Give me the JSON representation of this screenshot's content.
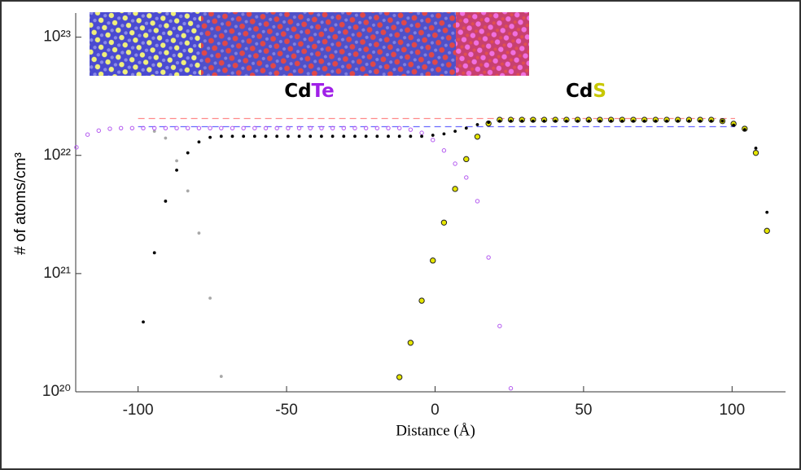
{
  "chart_data": {
    "type": "scatter",
    "xlabel": "Distance (Å)",
    "ylabel": "# of atoms/cm³",
    "xlim": [
      -121,
      118
    ],
    "ylim": [
      1e+20,
      1.6e+23
    ],
    "yscale": "log",
    "xticks": [
      -100,
      -50,
      0,
      50,
      100
    ],
    "yticks": [
      {
        "value": 1e+20,
        "label": "10²⁰"
      },
      {
        "value": 1e+21,
        "label": "10²¹"
      },
      {
        "value": 1e+22,
        "label": "10²²"
      },
      {
        "value": 1e+23,
        "label": "10²³"
      }
    ],
    "annotations": [
      {
        "parts": [
          {
            "text": "Cd",
            "color": "#000000"
          },
          {
            "text": "Te",
            "color": "#a020e8"
          }
        ]
      },
      {
        "parts": [
          {
            "text": "Cd",
            "color": "#000000"
          },
          {
            "text": "S",
            "color": "#c8c800"
          }
        ]
      }
    ],
    "reference_lines": [
      {
        "value": 2.05e+22,
        "xrange": [
          -100,
          101
        ],
        "color": "#ff8a8a"
      },
      {
        "value": 1.75e+22,
        "xrange": [
          -100,
          101
        ],
        "color": "#6a6aff"
      }
    ],
    "series": [
      {
        "color": "#a8a8a8",
        "marker": "dot",
        "x": [
          -94.5,
          -90.75,
          -87,
          -83.25,
          -79.5,
          -75.75,
          -72
        ],
        "values": [
          1.6e+22,
          1.4e+22,
          9e+21,
          5e+21,
          2.2e+21,
          6.2e+20,
          1.35e+20
        ]
      },
      {
        "color": "#b45af0",
        "marker": "open",
        "x": [
          -120.75,
          -117,
          -113.25,
          -109.5,
          -105.75,
          -102,
          -98.25,
          -94.5,
          -90.75,
          -87,
          -83.25,
          -79.5,
          -75.75,
          -72,
          -68.25,
          -64.5,
          -60.75,
          -57,
          -53.25,
          -49.5,
          -45.75,
          -42,
          -38.25,
          -34.5,
          -30.75,
          -27,
          -23.25,
          -19.5,
          -15.75,
          -12,
          -8.25,
          -4.5,
          -0.75,
          3,
          6.75,
          10.5,
          14.25,
          18,
          21.75,
          25.5
        ],
        "values": [
          1.17e+22,
          1.5e+22,
          1.62e+22,
          1.68e+22,
          1.7e+22,
          1.7e+22,
          1.7e+22,
          1.7e+22,
          1.7e+22,
          1.7e+22,
          1.7e+22,
          1.7e+22,
          1.7e+22,
          1.7e+22,
          1.7e+22,
          1.7e+22,
          1.7e+22,
          1.7e+22,
          1.7e+22,
          1.7e+22,
          1.7e+22,
          1.7e+22,
          1.7e+22,
          1.7e+22,
          1.7e+22,
          1.7e+22,
          1.7e+22,
          1.7e+22,
          1.7e+22,
          1.7e+22,
          1.65e+22,
          1.55e+22,
          1.35e+22,
          1.1e+22,
          8.5e+21,
          6.5e+21,
          4.1e+21,
          1.37e+21,
          3.6e+20,
          1.07e+20
        ]
      },
      {
        "color": "#e6e600",
        "marker": "filled",
        "x": [
          -12,
          -8.25,
          -4.5,
          -0.75,
          3,
          6.75,
          10.5,
          14.25,
          18,
          21.75,
          25.5,
          29.25,
          33,
          36.75,
          40.5,
          44.25,
          48,
          51.75,
          55.5,
          59.25,
          63,
          66.75,
          70.5,
          74.25,
          78,
          81.75,
          85.5,
          89.25,
          93,
          96.75,
          100.5,
          104.25,
          108,
          111.75
        ],
        "values": [
          1.33e+20,
          2.6e+20,
          5.9e+20,
          1.29e+21,
          2.7e+21,
          5.2e+21,
          9.3e+21,
          1.44e+22,
          1.86e+22,
          2e+22,
          2e+22,
          2e+22,
          2e+22,
          2e+22,
          2e+22,
          2e+22,
          2e+22,
          2e+22,
          2e+22,
          2e+22,
          2e+22,
          2e+22,
          2e+22,
          2e+22,
          2e+22,
          2e+22,
          2e+22,
          2e+22,
          2e+22,
          1.95e+22,
          1.85e+22,
          1.68e+22,
          1.05e+22,
          2.3e+21
        ]
      },
      {
        "color": "#000000",
        "marker": "dot",
        "x": [
          -98.25,
          -94.5,
          -90.75,
          -87,
          -83.25,
          -79.5,
          -75.75,
          -72,
          -68.25,
          -64.5,
          -60.75,
          -57,
          -53.25,
          -49.5,
          -45.75,
          -42,
          -38.25,
          -34.5,
          -30.75,
          -27,
          -23.25,
          -19.5,
          -15.75,
          -12,
          -8.25,
          -4.5,
          -0.75,
          3,
          6.75,
          10.5,
          14.25,
          18,
          21.75,
          25.5,
          29.25,
          33,
          36.75,
          40.5,
          44.25,
          48,
          51.75,
          55.5,
          59.25,
          63,
          66.75,
          70.5,
          74.25,
          78,
          81.75,
          85.5,
          89.25,
          93,
          96.75,
          100.5,
          104.25,
          108,
          111.75
        ],
        "values": [
          3.9e+20,
          1.5e+21,
          4.1e+21,
          7.5e+21,
          1.05e+22,
          1.3e+22,
          1.42e+22,
          1.45e+22,
          1.45e+22,
          1.45e+22,
          1.45e+22,
          1.45e+22,
          1.45e+22,
          1.45e+22,
          1.45e+22,
          1.45e+22,
          1.45e+22,
          1.45e+22,
          1.45e+22,
          1.45e+22,
          1.45e+22,
          1.45e+22,
          1.45e+22,
          1.45e+22,
          1.45e+22,
          1.45e+22,
          1.48e+22,
          1.52e+22,
          1.6e+22,
          1.7e+22,
          1.82e+22,
          1.9e+22,
          1.95e+22,
          1.95e+22,
          1.95e+22,
          1.95e+22,
          1.95e+22,
          1.95e+22,
          1.95e+22,
          1.95e+22,
          1.95e+22,
          1.95e+22,
          1.95e+22,
          1.95e+22,
          1.95e+22,
          1.95e+22,
          1.95e+22,
          1.95e+22,
          1.95e+22,
          1.95e+22,
          1.95e+22,
          1.95e+22,
          1.95e+22,
          1.8e+22,
          1.65e+22,
          1.15e+22,
          3.3e+21
        ]
      }
    ]
  }
}
